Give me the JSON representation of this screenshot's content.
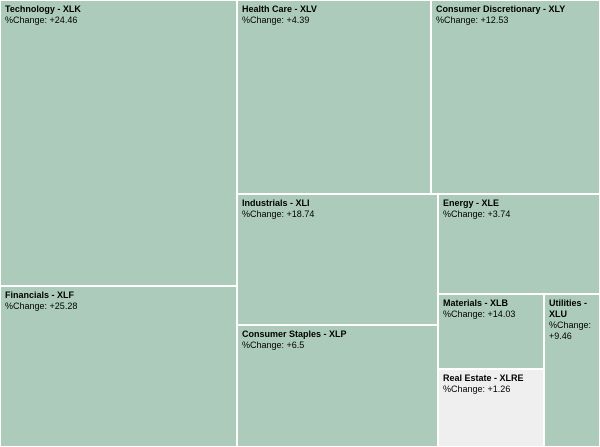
{
  "chart_data": {
    "type": "treemap",
    "value_label": "%Change:",
    "colors": {
      "positive": "#adcbbb",
      "neutral": "#efefef",
      "border": "#ffffff"
    },
    "items": [
      {
        "name": "Technology - XLK",
        "change": "+24.46"
      },
      {
        "name": "Health Care - XLV",
        "change": "+4.39"
      },
      {
        "name": "Consumer Discretionary - XLY",
        "change": "+12.53"
      },
      {
        "name": "Financials - XLF",
        "change": "+25.28"
      },
      {
        "name": "Industrials - XLI",
        "change": "+18.74"
      },
      {
        "name": "Energy - XLE",
        "change": "+3.74"
      },
      {
        "name": "Consumer Staples - XLP",
        "change": "+6.5"
      },
      {
        "name": "Materials - XLB",
        "change": "+14.03"
      },
      {
        "name": "Utilities - XLU",
        "change": "+9.46"
      },
      {
        "name": "Real Estate - XLRE",
        "change": "+1.26"
      }
    ]
  }
}
